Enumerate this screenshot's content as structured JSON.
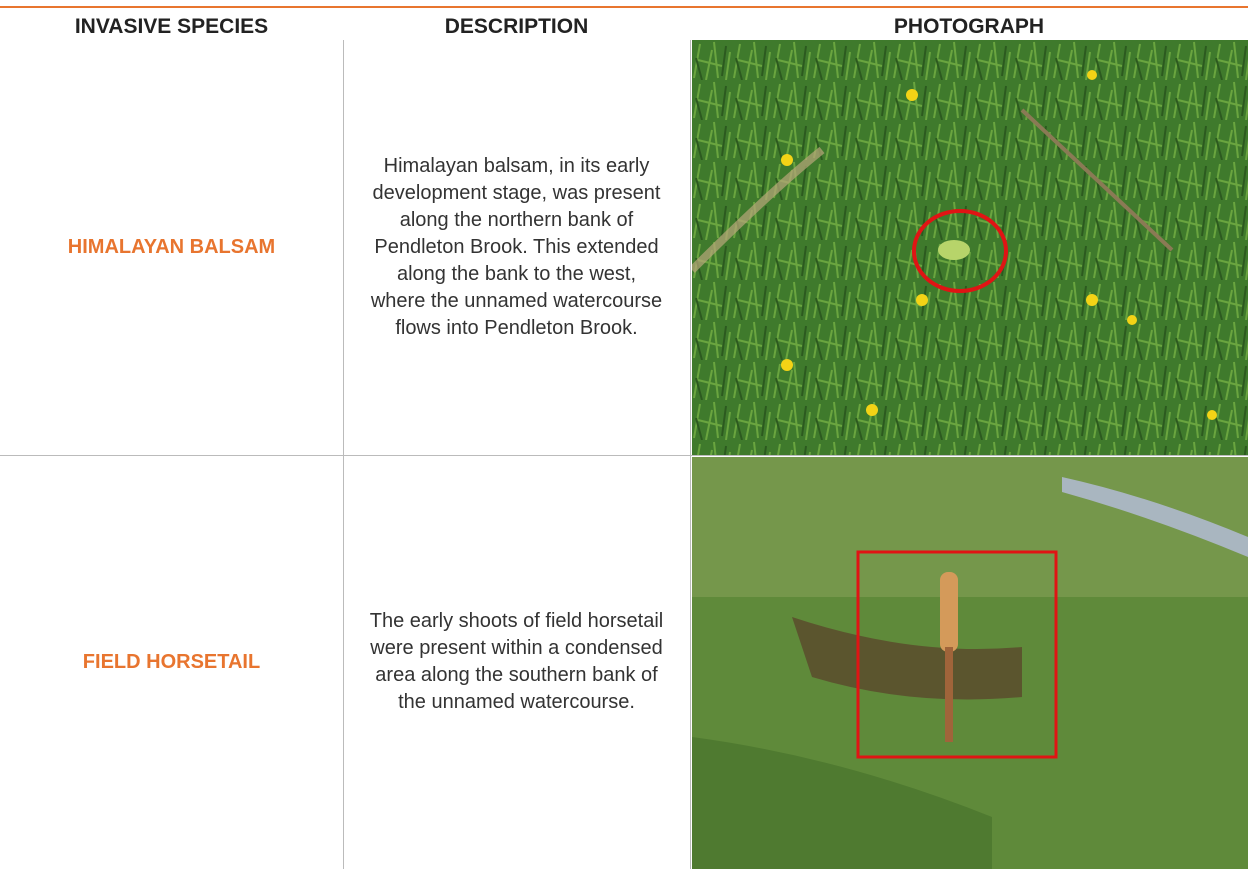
{
  "table": {
    "columns": [
      "INVASIVE SPECIES",
      "DESCRIPTION",
      "PHOTOGRAPH"
    ],
    "rows": [
      {
        "species": "HIMALAYAN BALSAM",
        "description": "Himalayan balsam, in its early development stage, was present along the northern bank of Pendleton Brook. This extended along the bank to the west, where the unnamed watercourse flows into Pendleton Brook."
      },
      {
        "species": "FIELD HORSETAIL",
        "description": "The early shoots of field horsetail were present within a condensed area along the southern bank of the unnamed watercourse."
      }
    ]
  }
}
